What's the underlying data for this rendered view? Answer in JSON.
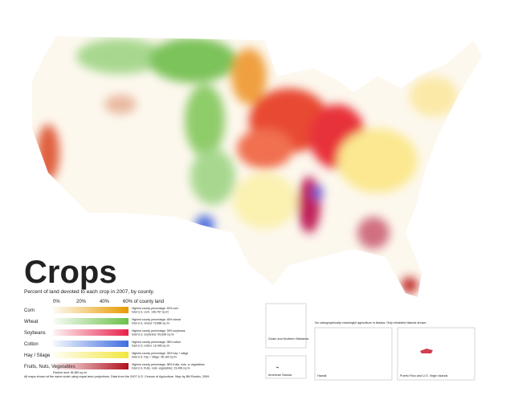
{
  "title": "Crops",
  "subtitle": "Percent of land devoted to each crop in 2007, by county.",
  "legend": {
    "scale": [
      "0%",
      "20%",
      "40%",
      "60% of county land"
    ],
    "items": [
      {
        "name": "Corn",
        "color": "#e89a00",
        "note": [
          "Highest county percentage: 53% corn",
          "total U.S. corn: 136,787 sq mi"
        ]
      },
      {
        "name": "Wheat",
        "color": "#6cc04a",
        "note": [
          "Highest county percentage: 48% wheat",
          "total U.S. wheat: 79,888 sq mi"
        ]
      },
      {
        "name": "Soybeans",
        "color": "#e8204a",
        "note": [
          "Highest county percentage: 39% soybeans",
          "total U.S. soybeans: 99,838 sq mi"
        ]
      },
      {
        "name": "Cotton",
        "color": "#3f6ee0",
        "note": [
          "Highest county percentage: 38% cotton",
          "total U.S. cotton: 16,496 sq mi"
        ]
      },
      {
        "name": "Hay / Silage",
        "color": "#f2e640",
        "note": [
          "Highest county percentage: 35% hay + silage",
          "total U.S. hay + silage: 98,180 sq mi"
        ]
      },
      {
        "name": "Fruits, Nuts, Vegetables",
        "color": "#b0101c",
        "note": [
          "Highest county percentage: 38% fruits, nuts, or vegetables",
          "total U.S. fruits, nuts, vegetables: 23,498 sq mi"
        ]
      }
    ],
    "footnote": "Pasture land: 96,389 sq mi"
  },
  "insets": {
    "note": "No cartographically meaningful agriculture in Alaska. Only inhabited islands shown.",
    "guam": "Guam and Northern Marianas",
    "samoa": "American Samoa",
    "hawaii": "Hawaii",
    "puerto_rico": "Puerto Rico and U.S. Virgin Islands"
  },
  "credit": "All maps shown at the same scale using equal area projections. Data from the 2007 U.S. Census of Agriculture. Map by Bill Rankin, 2009."
}
